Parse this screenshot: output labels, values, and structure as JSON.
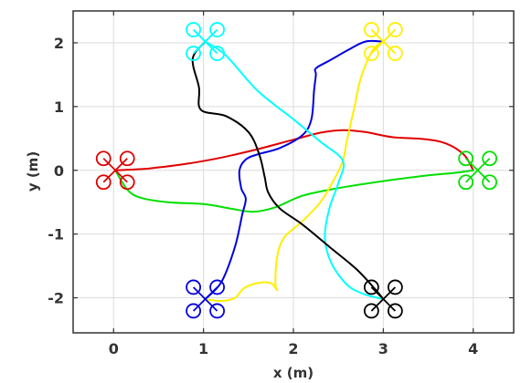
{
  "chart_data": {
    "type": "line",
    "title": "",
    "xlabel": "x (m)",
    "ylabel": "y (m)",
    "xlim": [
      -0.45,
      4.45
    ],
    "ylim": [
      -2.55,
      2.5
    ],
    "xticks": [
      0,
      1,
      2,
      3,
      4
    ],
    "yticks": [
      -2,
      -1,
      0,
      1,
      2
    ],
    "xtick_labels": [
      "0",
      "1",
      "2",
      "3",
      "4"
    ],
    "ytick_labels": [
      "-2",
      "-1",
      "0",
      "1",
      "2"
    ],
    "grid": true,
    "series": [
      {
        "color": "#e00000",
        "start": [
          0.02,
          0.0
        ],
        "end": [
          4.0,
          0.0
        ],
        "points": [
          [
            0.02,
            0.0
          ],
          [
            0.4,
            0.03
          ],
          [
            0.8,
            0.1
          ],
          [
            1.2,
            0.2
          ],
          [
            1.6,
            0.33
          ],
          [
            2.0,
            0.48
          ],
          [
            2.3,
            0.59
          ],
          [
            2.55,
            0.63
          ],
          [
            2.8,
            0.6
          ],
          [
            3.1,
            0.52
          ],
          [
            3.45,
            0.49
          ],
          [
            3.7,
            0.42
          ],
          [
            3.9,
            0.24
          ],
          [
            4.0,
            0.0
          ]
        ]
      },
      {
        "color": "#00e000",
        "start": [
          0.02,
          0.0
        ],
        "end": [
          4.0,
          0.0
        ],
        "points": [
          [
            0.02,
            0.0
          ],
          [
            0.15,
            -0.3
          ],
          [
            0.3,
            -0.43
          ],
          [
            0.6,
            -0.5
          ],
          [
            1.0,
            -0.53
          ],
          [
            1.3,
            -0.6
          ],
          [
            1.55,
            -0.65
          ],
          [
            1.8,
            -0.58
          ],
          [
            2.1,
            -0.4
          ],
          [
            2.5,
            -0.28
          ],
          [
            3.0,
            -0.17
          ],
          [
            3.5,
            -0.08
          ],
          [
            3.8,
            -0.04
          ],
          [
            4.0,
            0.0
          ]
        ]
      },
      {
        "color": "#0000e0",
        "start": [
          1.02,
          -2.02
        ],
        "end": [
          3.0,
          2.02
        ],
        "points": [
          [
            1.02,
            -2.02
          ],
          [
            1.2,
            -1.75
          ],
          [
            1.35,
            -1.2
          ],
          [
            1.43,
            -0.7
          ],
          [
            1.47,
            -0.45
          ],
          [
            1.42,
            -0.28
          ],
          [
            1.4,
            0.0
          ],
          [
            1.47,
            0.17
          ],
          [
            1.6,
            0.25
          ],
          [
            1.85,
            0.35
          ],
          [
            2.1,
            0.55
          ],
          [
            2.2,
            0.8
          ],
          [
            2.23,
            1.25
          ],
          [
            2.25,
            1.5
          ],
          [
            2.25,
            1.6
          ],
          [
            2.4,
            1.72
          ],
          [
            2.6,
            1.88
          ],
          [
            2.8,
            2.02
          ],
          [
            3.0,
            2.02
          ]
        ]
      },
      {
        "color": "#ffee00",
        "start": [
          1.02,
          -2.02
        ],
        "end": [
          3.0,
          2.02
        ],
        "points": [
          [
            1.02,
            -2.02
          ],
          [
            1.2,
            -2.05
          ],
          [
            1.35,
            -2.0
          ],
          [
            1.45,
            -1.85
          ],
          [
            1.6,
            -1.77
          ],
          [
            1.75,
            -1.77
          ],
          [
            1.82,
            -1.88
          ],
          [
            1.8,
            -1.78
          ],
          [
            1.82,
            -1.35
          ],
          [
            1.9,
            -1.05
          ],
          [
            2.1,
            -0.8
          ],
          [
            2.3,
            -0.5
          ],
          [
            2.45,
            -0.15
          ],
          [
            2.55,
            0.15
          ],
          [
            2.6,
            0.5
          ],
          [
            2.68,
            1.0
          ],
          [
            2.75,
            1.45
          ],
          [
            2.88,
            1.88
          ],
          [
            3.0,
            2.02
          ]
        ]
      },
      {
        "color": "#00ffff",
        "start": [
          1.02,
          2.02
        ],
        "end": [
          3.0,
          -2.02
        ],
        "points": [
          [
            1.02,
            2.02
          ],
          [
            1.25,
            1.8
          ],
          [
            1.6,
            1.25
          ],
          [
            2.0,
            0.8
          ],
          [
            2.3,
            0.45
          ],
          [
            2.55,
            0.15
          ],
          [
            2.5,
            -0.2
          ],
          [
            2.4,
            -0.6
          ],
          [
            2.35,
            -1.05
          ],
          [
            2.42,
            -1.45
          ],
          [
            2.6,
            -1.8
          ],
          [
            2.8,
            -1.95
          ],
          [
            3.0,
            -2.02
          ]
        ]
      },
      {
        "color": "#000000",
        "start": [
          1.02,
          2.02
        ],
        "end": [
          3.0,
          -2.02
        ],
        "points": [
          [
            1.02,
            2.02
          ],
          [
            0.88,
            1.75
          ],
          [
            0.95,
            1.3
          ],
          [
            0.97,
            0.95
          ],
          [
            1.25,
            0.85
          ],
          [
            1.5,
            0.6
          ],
          [
            1.62,
            0.25
          ],
          [
            1.68,
            -0.1
          ],
          [
            1.72,
            -0.35
          ],
          [
            1.85,
            -0.6
          ],
          [
            2.1,
            -0.85
          ],
          [
            2.4,
            -1.2
          ],
          [
            2.7,
            -1.55
          ],
          [
            2.9,
            -1.85
          ],
          [
            3.0,
            -2.02
          ]
        ]
      }
    ],
    "quadrotors": [
      {
        "color": "#e00000",
        "x": 0.02,
        "y": 0.0
      },
      {
        "color": "#00e000",
        "x": 4.05,
        "y": 0.0
      },
      {
        "color": "#0000e0",
        "x": 1.02,
        "y": -2.02
      },
      {
        "color": "#ffee00",
        "x": 3.0,
        "y": 2.02
      },
      {
        "color": "#00ffff",
        "x": 1.02,
        "y": 2.02
      },
      {
        "color": "#000000",
        "x": 3.0,
        "y": -2.02
      }
    ]
  }
}
